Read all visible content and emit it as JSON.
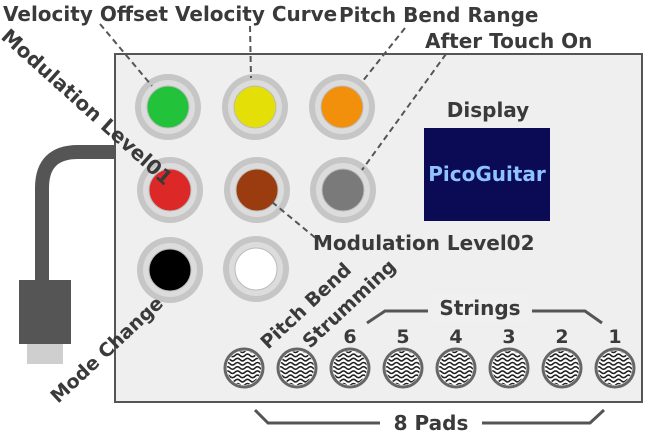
{
  "labels": {
    "velocity_offset": "Velocity Offset",
    "velocity_curve": "Velocity Curve",
    "pitch_bend_range": "Pitch Bend Range",
    "after_touch_on": "After Touch On",
    "modulation_level01": "Modulation Level01",
    "modulation_level02": "Modulation Level02",
    "mode_change": "Mode Change",
    "pitch_bend": "Pitch Bend",
    "strumming": "Strumming",
    "strings": "Strings",
    "pads": "8 Pads"
  },
  "display": {
    "title": "Display",
    "text": "PicoGuitar"
  },
  "string_numbers": [
    "6",
    "5",
    "4",
    "3",
    "2",
    "1"
  ],
  "buttons": [
    {
      "name": "velocity-offset-button",
      "color": "#22c23a"
    },
    {
      "name": "velocity-curve-button",
      "color": "#e3df07"
    },
    {
      "name": "pitch-bend-range-button",
      "color": "#f2900c"
    },
    {
      "name": "modulation-level01-button",
      "color": "#dd2828"
    },
    {
      "name": "modulation-level02-button",
      "color": "#9a3c10"
    },
    {
      "name": "after-touch-on-button",
      "color": "#7a7a7a"
    },
    {
      "name": "mode-change-button",
      "color": "#000000"
    },
    {
      "name": "white-button",
      "color": "#ffffff"
    }
  ],
  "colors": {
    "panel": "#efefef",
    "panel_border": "#555555",
    "display_bg": "#0a0a55",
    "cable": "#555555",
    "connector": "#555555",
    "connector_tip": "#cfcfcf"
  },
  "pad_count": 8
}
